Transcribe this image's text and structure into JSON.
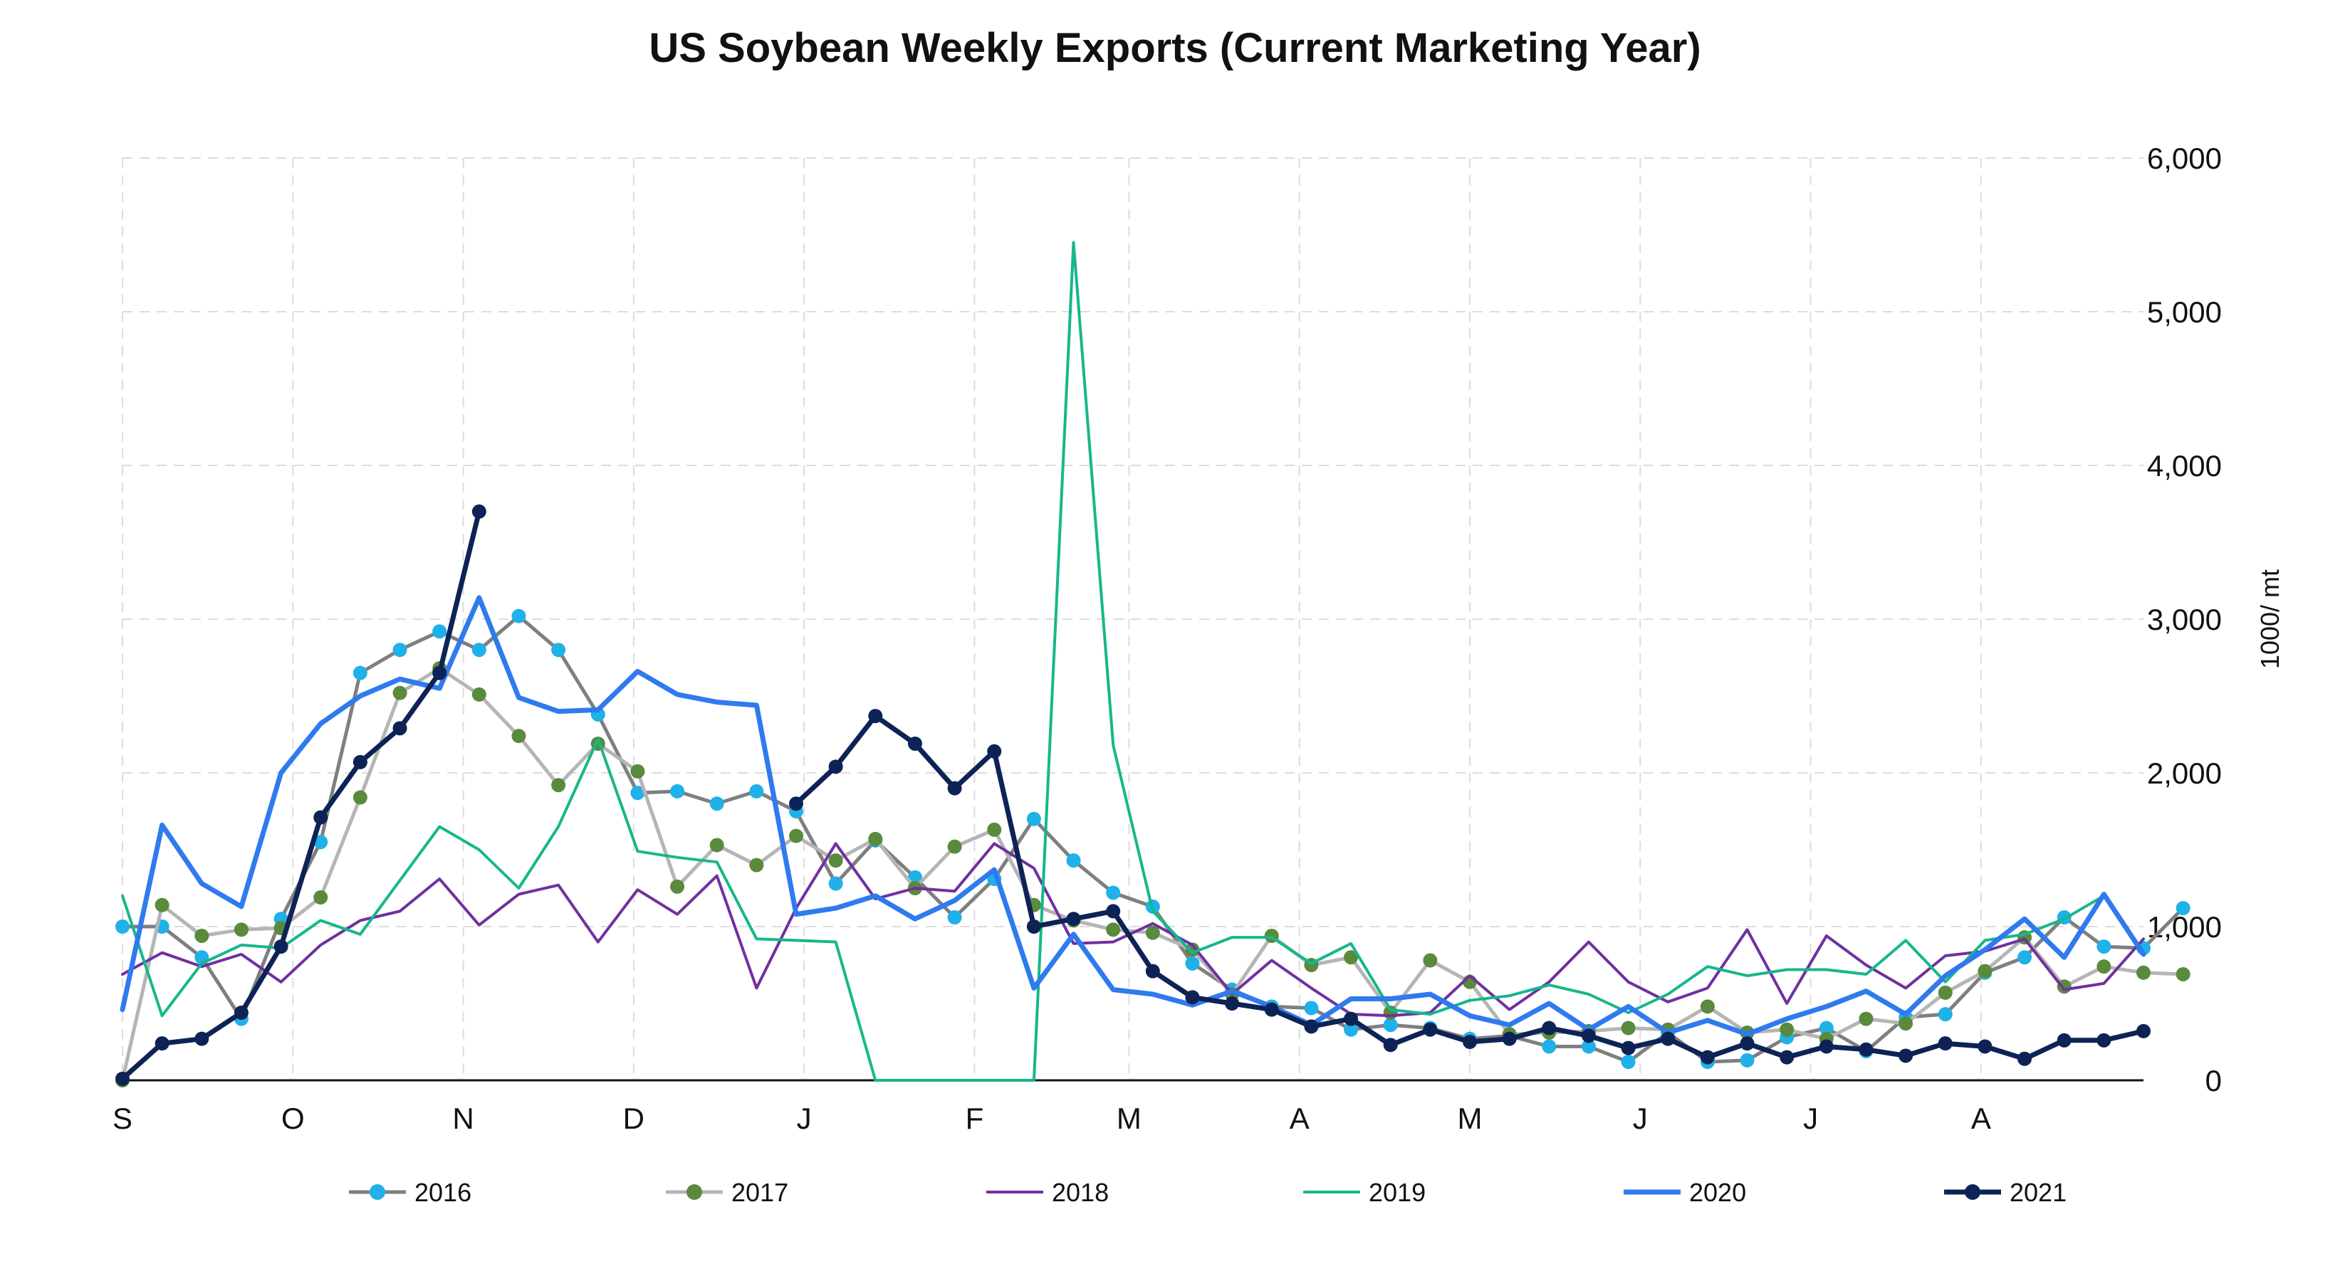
{
  "chart_data": {
    "type": "line",
    "title": "US Soybean Weekly Exports (Current Marketing Year)",
    "ylabel": "1000/ mt",
    "xlabel": "",
    "ylim": [
      0,
      6000
    ],
    "yticks": [
      0,
      1000,
      2000,
      3000,
      4000,
      5000,
      6000
    ],
    "ytick_labels": [
      "0",
      "1,000",
      "2,000",
      "3,000",
      "4,000",
      "5,000",
      "6,000"
    ],
    "x_tick_labels": [
      "S",
      "O",
      "N",
      "D",
      "J",
      "F",
      "M",
      "A",
      "M",
      "J",
      "J",
      "A"
    ],
    "x_tick_weeks": [
      0,
      4.3,
      8.6,
      12.9,
      17.2,
      21.5,
      25.4,
      29.7,
      34,
      38.3,
      42.6,
      46.9
    ],
    "weeks": 51,
    "grid": true,
    "yaxis_side": "right",
    "legend_position": "bottom",
    "series": [
      {
        "name": "2016",
        "color": "#7f7f7f",
        "marker_color": "#1fb1e8",
        "marker": true,
        "width": 5,
        "values": [
          1000,
          1000,
          800,
          400,
          1050,
          1550,
          2650,
          2800,
          2920,
          2800,
          3020,
          2800,
          2380,
          1870,
          1880,
          1800,
          1880,
          1750,
          1280,
          1560,
          1320,
          1060,
          1310,
          1700,
          1430,
          1220,
          1130,
          760,
          590,
          480,
          470,
          330,
          360,
          340,
          270,
          290,
          220,
          220,
          120,
          310,
          120,
          130,
          280,
          340,
          190,
          410,
          430,
          700,
          800,
          1060,
          870,
          860,
          1120
        ]
      },
      {
        "name": "2017",
        "color": "#b5b5b5",
        "marker_color": "#5a8a3c",
        "marker": true,
        "width": 5,
        "values": [
          0,
          1140,
          940,
          980,
          990,
          1190,
          1840,
          2520,
          2680,
          2510,
          2240,
          1920,
          2190,
          2010,
          1260,
          1530,
          1400,
          1590,
          1430,
          1570,
          1250,
          1520,
          1630,
          1140,
          1040,
          980,
          960,
          850,
          560,
          940,
          750,
          800,
          440,
          780,
          640,
          300,
          310,
          320,
          340,
          330,
          480,
          310,
          330,
          270,
          400,
          370,
          570,
          710,
          930,
          610,
          740,
          700,
          690
        ]
      },
      {
        "name": "2018",
        "color": "#7030a0",
        "marker": false,
        "width": 4,
        "values": [
          690,
          830,
          740,
          820,
          640,
          880,
          1040,
          1100,
          1310,
          1010,
          1210,
          1270,
          900,
          1240,
          1080,
          1330,
          600,
          1120,
          1540,
          1180,
          1250,
          1230,
          1540,
          1380,
          890,
          900,
          1020,
          880,
          560,
          780,
          600,
          430,
          420,
          440,
          680,
          460,
          640,
          900,
          640,
          510,
          600,
          980,
          500,
          940,
          750,
          600,
          810,
          840,
          920,
          590,
          630,
          920
        ]
      },
      {
        "name": "2019",
        "color": "#16b78c",
        "marker": false,
        "width": 4,
        "values": [
          1200,
          420,
          760,
          880,
          860,
          1040,
          950,
          1300,
          1650,
          1500,
          1250,
          1650,
          2220,
          1490,
          1450,
          1420,
          920,
          910,
          900,
          0,
          0,
          0,
          0,
          0,
          5450,
          2180,
          1100,
          830,
          930,
          930,
          760,
          890,
          460,
          430,
          520,
          550,
          620,
          560,
          440,
          560,
          740,
          680,
          720,
          720,
          690,
          910,
          640,
          910,
          950,
          1050,
          1200,
          820
        ]
      },
      {
        "name": "2020",
        "color": "#2f7aee",
        "marker": false,
        "width": 7,
        "values": [
          460,
          1660,
          1280,
          1130,
          2000,
          2320,
          2500,
          2610,
          2550,
          3140,
          2490,
          2400,
          2410,
          2660,
          2510,
          2460,
          2440,
          1080,
          1120,
          1200,
          1050,
          1170,
          1370,
          600,
          950,
          590,
          560,
          490,
          580,
          480,
          360,
          530,
          530,
          560,
          420,
          360,
          500,
          330,
          480,
          310,
          390,
          300,
          400,
          480,
          580,
          430,
          680,
          850,
          1050,
          800,
          1210,
          820
        ]
      },
      {
        "name": "2021",
        "color": "#0d2356",
        "marker_color": "#0d2356",
        "marker": true,
        "width": 7,
        "values": [
          10,
          240,
          270,
          440,
          870,
          1710,
          2070,
          2290,
          2650,
          3700,
          null,
          null,
          null,
          null,
          null,
          null,
          null,
          1800,
          2040,
          2370,
          2190,
          1900,
          2140,
          1000,
          1050,
          1100,
          710,
          540,
          500,
          460,
          350,
          400,
          230,
          330,
          250,
          270,
          340,
          290,
          210,
          270,
          150,
          240,
          150,
          220,
          200,
          160,
          240,
          220,
          140,
          260,
          260,
          320
        ]
      }
    ]
  }
}
